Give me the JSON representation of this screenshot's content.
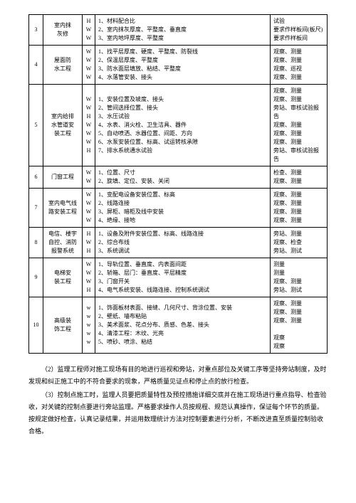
{
  "rows": [
    {
      "num": "3",
      "name": "室内抹\n灰修",
      "marks": "H\nW\nW",
      "items": [
        "1、材料配合比",
        "2、室内抹灰厚度、平整度、垂直度",
        "3、室内地坪厚度、平整度"
      ],
      "notes": "试验\n要求作样板间(板尺)\n要求作样板间"
    },
    {
      "num": "4",
      "name": "屋面防\n水工程",
      "marks": "W\nW\nW\nW",
      "items": [
        "1、找平层厚度、硬度、平整度、防裂线",
        "2、保温层厚度、平整度",
        "3、防水面层填放、粘结、平整度",
        "4、水落管安装、接头"
      ],
      "notes": "观察、测量\n观察、测量\n观察、巡视\n观察、测量"
    },
    {
      "num": "5",
      "name": "室内给排\n水管道安\n装工程",
      "marks": "W\nW\nH\nW\nW\nW\nH",
      "items": [
        "1、安装位置及坡度、接头",
        "2、管间选择位置、接头",
        "3、水压试验",
        "4、水表、消火栓、卫生洁具、器件",
        "5、自动喷洒、水器位置、间距、方向",
        "6、水泵安装位置、标高、试运转核承隙",
        "7、排水系统通水试验"
      ],
      "notes": "观察、测量\n观察、测量\n旁站、审核试验报告\n观察、测量\n观察、测量\n观察、测量\n旁站、审核试验报告"
    },
    {
      "num": "6",
      "name": "门窗工程",
      "marks": "W\nW",
      "items": [
        "1、位置、尺寸",
        "2、旋填、定位、安装、关闭"
      ],
      "notes": "检查、测量\n观察、测量"
    },
    {
      "num": "7",
      "name": "室内电气线\n路安装工程",
      "marks": "W\nW\nW\nW",
      "items": [
        "1、变配电设备安装位置、标高",
        "2、线路连接",
        "3、屏柜、暗柜及线中安装",
        "4、绝缘、接地"
      ],
      "notes": "观察、测量\n观察、测量\n观察、测量\n观察、测量"
    },
    {
      "num": "8",
      "name": "电信、楼宇\n自控、消防\n报警系统",
      "marks": "H\nW\nH",
      "items": [
        "1、设备及附件安装位置、标高、线路连接",
        "2、综合布线",
        "3、系统调试"
      ],
      "notes": "旁站、测量\n观察、检查\n旁站、测试"
    },
    {
      "num": "9",
      "name": "电梯安\n装工程",
      "marks": "W\nW\nW\nH",
      "items": [
        "1、导轨位置、垂直度、内表面间距",
        "2、轿箱、层门：垂直度、平层精度",
        "3、门窗开关",
        "4、电气系统安装、线路连接、控制系统调试"
      ],
      "notes": "测量\n测量\n观察、测量\n旁站、测试"
    },
    {
      "num": "10",
      "name": "高级装\n饰工程",
      "marks": "w\nw\nw\nw\nw",
      "items": [
        "1、饰面板材表面、接缝、几何尺寸、背涂位置、安装",
        "2、壁纸、墙布粘贴",
        "3、美术面浆、花点分布、质感、色差、接头",
        "4、清漆工程：木纹、光亮",
        "5、喷砂、喷涂、粘结"
      ],
      "notes": "观察、测量\n观察、测量\n观察、测量\n\n观察\n观察"
    }
  ],
  "paragraphs": [
    "（2）监理工程师对施工现场有目的地进行巡视和旁站，对重点部位及关键工序等坚持旁站制度，及时发现和纠正施工中的不符合要求的现象，严格质量见证点和停止点的放行检查。",
    "（3）控制点施工时，监理人员要把质量特性及预控措施详细交底并在施工现场进行重点指导、检查验收，对关键的控制点要进行旁站监理。严格要求操作人员按规程、规范认真操作，保证每个环节的质量。按规定做好检查，认真记录结果，并运用数理统计方法对控制要素进行分析，不断改进直至质量控制验收合格。"
  ]
}
